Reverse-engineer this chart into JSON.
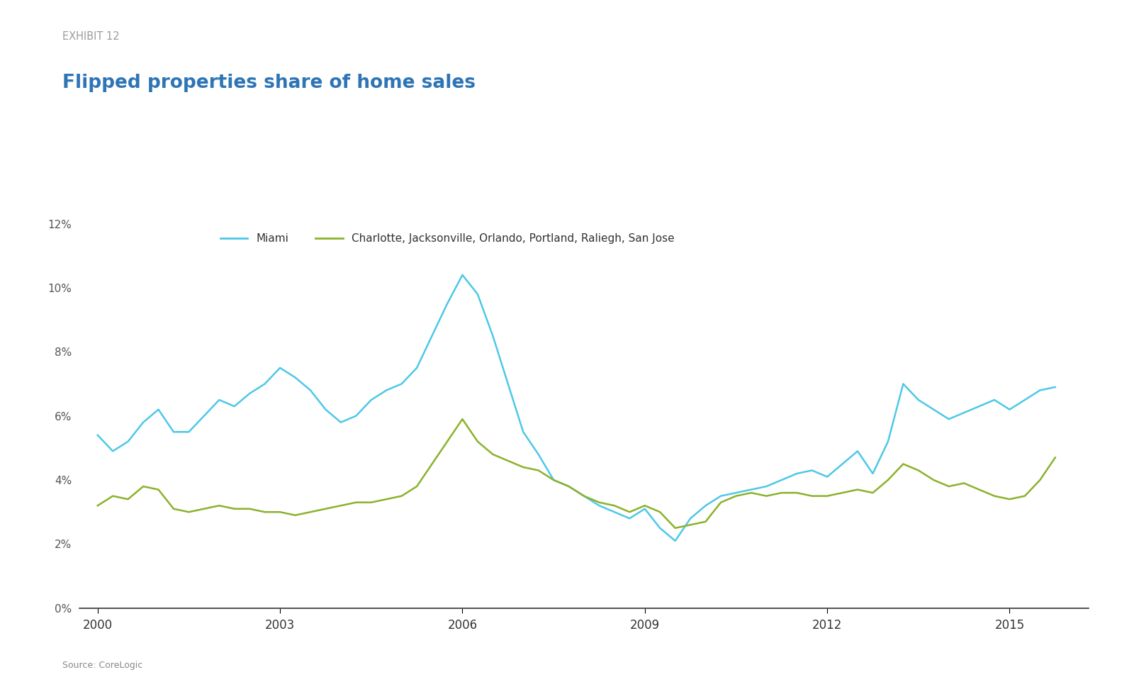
{
  "title": "Flipped properties share of home sales",
  "exhibit_label": "EXHIBIT 12",
  "source_label": "Source: CoreLogic",
  "title_color": "#2E75B6",
  "exhibit_color": "#9B9B9B",
  "separator_color": "#A8C837",
  "background_color": "#FFFFFF",
  "miami_label": "Miami",
  "other_label": "Charlotte, Jacksonville, Orlando, Portland, Raliegh, San Jose",
  "miami_color": "#4DC8E8",
  "other_color": "#8BB22A",
  "years": [
    2000.0,
    2000.25,
    2000.5,
    2000.75,
    2001.0,
    2001.25,
    2001.5,
    2001.75,
    2002.0,
    2002.25,
    2002.5,
    2002.75,
    2003.0,
    2003.25,
    2003.5,
    2003.75,
    2004.0,
    2004.25,
    2004.5,
    2004.75,
    2005.0,
    2005.25,
    2005.5,
    2005.75,
    2006.0,
    2006.25,
    2006.5,
    2006.75,
    2007.0,
    2007.25,
    2007.5,
    2007.75,
    2008.0,
    2008.25,
    2008.5,
    2008.75,
    2009.0,
    2009.25,
    2009.5,
    2009.75,
    2010.0,
    2010.25,
    2010.5,
    2010.75,
    2011.0,
    2011.25,
    2011.5,
    2011.75,
    2012.0,
    2012.25,
    2012.5,
    2012.75,
    2013.0,
    2013.25,
    2013.5,
    2013.75,
    2014.0,
    2014.25,
    2014.5,
    2014.75,
    2015.0,
    2015.25,
    2015.5,
    2015.75
  ],
  "miami": [
    5.4,
    4.9,
    5.2,
    5.8,
    6.2,
    5.5,
    5.5,
    6.0,
    6.5,
    6.3,
    6.7,
    7.0,
    7.5,
    7.2,
    6.8,
    6.2,
    5.8,
    6.0,
    6.5,
    6.8,
    7.0,
    7.5,
    8.5,
    9.5,
    10.4,
    9.8,
    8.5,
    7.0,
    5.5,
    4.8,
    4.0,
    3.8,
    3.5,
    3.2,
    3.0,
    2.8,
    3.1,
    2.5,
    2.1,
    2.8,
    3.2,
    3.5,
    3.6,
    3.7,
    3.8,
    4.0,
    4.2,
    4.3,
    4.1,
    4.5,
    4.9,
    4.2,
    5.2,
    7.0,
    6.5,
    6.2,
    5.9,
    6.1,
    6.3,
    6.5,
    6.2,
    6.5,
    6.8,
    6.9
  ],
  "other": [
    3.2,
    3.5,
    3.4,
    3.8,
    3.7,
    3.1,
    3.0,
    3.1,
    3.2,
    3.1,
    3.1,
    3.0,
    3.0,
    2.9,
    3.0,
    3.1,
    3.2,
    3.3,
    3.3,
    3.4,
    3.5,
    3.8,
    4.5,
    5.2,
    5.9,
    5.2,
    4.8,
    4.6,
    4.4,
    4.3,
    4.0,
    3.8,
    3.5,
    3.3,
    3.2,
    3.0,
    3.2,
    3.0,
    2.5,
    2.6,
    2.7,
    3.3,
    3.5,
    3.6,
    3.5,
    3.6,
    3.6,
    3.5,
    3.5,
    3.6,
    3.7,
    3.6,
    4.0,
    4.5,
    4.3,
    4.0,
    3.8,
    3.9,
    3.7,
    3.5,
    3.4,
    3.5,
    4.0,
    4.7
  ],
  "ylim": [
    0,
    12
  ],
  "yticks": [
    0,
    2,
    4,
    6,
    8,
    10,
    12
  ],
  "xlim": [
    1999.7,
    2016.3
  ],
  "xticks": [
    2000,
    2003,
    2006,
    2009,
    2012,
    2015
  ]
}
